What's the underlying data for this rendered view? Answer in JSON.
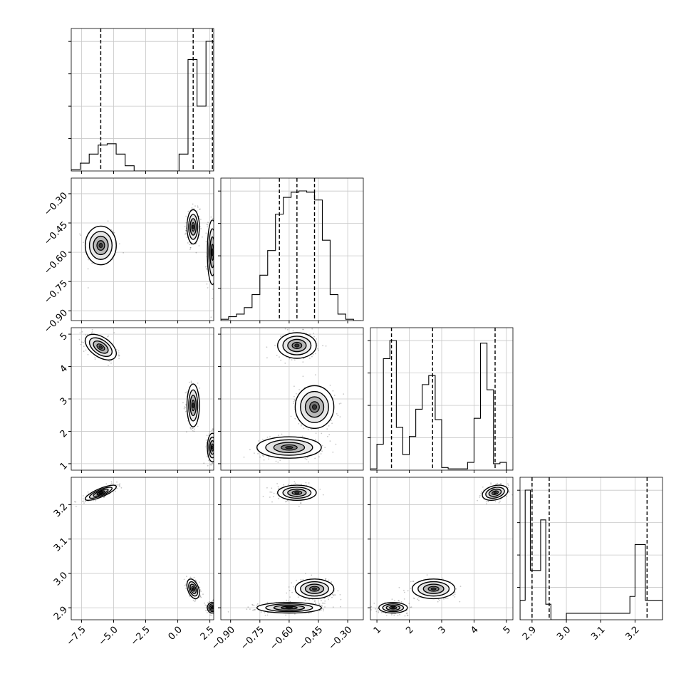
{
  "chart_data": {
    "type": "corner",
    "grid": true,
    "parameters": [
      {
        "range": [
          -8.3,
          2.8
        ],
        "ticks": [
          -7.5,
          -5.0,
          -2.5,
          0.0,
          2.5
        ],
        "tick_labels": [
          "−7.5",
          "−5.0",
          "−2.5",
          "0.0",
          "2.5"
        ],
        "quantiles": [
          -6.0,
          1.2,
          2.7
        ]
      },
      {
        "range": [
          -0.95,
          -0.22
        ],
        "ticks": [
          -0.9,
          -0.75,
          -0.6,
          -0.45,
          -0.3
        ],
        "tick_labels": [
          "−0.90",
          "−0.75",
          "−0.60",
          "−0.45",
          "−0.30"
        ],
        "quantiles": [
          -0.65,
          -0.56,
          -0.47
        ]
      },
      {
        "range": [
          0.8,
          5.2
        ],
        "ticks": [
          1,
          2,
          3,
          4,
          5
        ],
        "tick_labels": [
          "1",
          "2",
          "3",
          "4",
          "5"
        ],
        "quantiles": [
          1.45,
          2.72,
          4.65
        ]
      },
      {
        "range": [
          2.865,
          3.28
        ],
        "ticks": [
          2.9,
          3.0,
          3.1,
          3.2
        ],
        "tick_labels": [
          "2.9",
          "3.0",
          "3.1",
          "3.2"
        ],
        "quantiles": [
          2.9,
          2.95,
          3.235
        ]
      }
    ],
    "histograms": [
      {
        "bins": [
          -8.3,
          -7.6,
          -6.9,
          -6.2,
          -5.5,
          -4.8,
          -4.1,
          -3.4,
          0.1,
          0.8,
          1.5,
          2.2,
          2.8
        ],
        "counts": [
          0.01,
          0.06,
          0.13,
          0.2,
          0.21,
          0.13,
          0.04,
          0.0,
          0.13,
          0.86,
          0.5,
          1.0
        ]
      },
      {
        "bins": [
          -0.95,
          -0.91,
          -0.87,
          -0.83,
          -0.79,
          -0.75,
          -0.71,
          -0.67,
          -0.63,
          -0.59,
          -0.55,
          -0.51,
          -0.47,
          -0.43,
          -0.39,
          -0.35,
          -0.31,
          -0.27,
          -0.23
        ],
        "counts": [
          0.01,
          0.03,
          0.05,
          0.1,
          0.2,
          0.35,
          0.54,
          0.82,
          0.95,
          0.99,
          1.0,
          0.99,
          0.93,
          0.62,
          0.2,
          0.05,
          0.01,
          0.0
        ]
      },
      {
        "bins": [
          0.8,
          1.0,
          1.2,
          1.4,
          1.6,
          1.8,
          2.0,
          2.2,
          2.4,
          2.6,
          2.8,
          3.0,
          3.2,
          3.4,
          3.6,
          3.8,
          4.0,
          4.2,
          4.4,
          4.6,
          4.8,
          5.0,
          5.2
        ],
        "counts": [
          0.01,
          0.2,
          0.86,
          1.0,
          0.33,
          0.12,
          0.26,
          0.47,
          0.66,
          0.73,
          0.39,
          0.02,
          0.01,
          0.01,
          0.01,
          0.06,
          0.4,
          0.98,
          0.62,
          0.05,
          0.06,
          0.0
        ]
      },
      {
        "bins": [
          2.865,
          2.88,
          2.895,
          2.91,
          2.925,
          2.94,
          2.955,
          2.97,
          2.985,
          3.0,
          3.185,
          3.2,
          3.215,
          3.23,
          3.245,
          3.26,
          3.28
        ],
        "counts": [
          0.15,
          1.0,
          0.38,
          0.38,
          0.77,
          0.12,
          0.0,
          0.0,
          0.0,
          0.05,
          0.18,
          0.58,
          0.58,
          0.15,
          0.15,
          0.15
        ]
      }
    ],
    "panels": [
      {
        "row": 1,
        "col": 0,
        "blobs": [
          {
            "mean": [
              -6.0,
              -0.565
            ],
            "sd": [
              0.55,
              0.045
            ],
            "corr": 0.0,
            "weight": 0.3
          },
          {
            "mean": [
              1.2,
              -0.47
            ],
            "sd": [
              0.22,
              0.04
            ],
            "corr": 0.0,
            "weight": 0.35
          },
          {
            "mean": [
              2.7,
              -0.6
            ],
            "sd": [
              0.18,
              0.075
            ],
            "corr": 0.0,
            "weight": 0.35
          }
        ]
      },
      {
        "row": 2,
        "col": 0,
        "blobs": [
          {
            "mean": [
              -6.0,
              4.6
            ],
            "sd": [
              0.55,
              0.18
            ],
            "corr": -0.5,
            "weight": 0.3
          },
          {
            "mean": [
              1.2,
              2.8
            ],
            "sd": [
              0.22,
              0.3
            ],
            "corr": 0.0,
            "weight": 0.35
          },
          {
            "mean": [
              2.7,
              1.5
            ],
            "sd": [
              0.18,
              0.2
            ],
            "corr": 0.0,
            "weight": 0.35
          }
        ]
      },
      {
        "row": 2,
        "col": 1,
        "blobs": [
          {
            "mean": [
              -0.56,
              4.65
            ],
            "sd": [
              0.045,
              0.18
            ],
            "corr": 0.0,
            "weight": 0.3
          },
          {
            "mean": [
              -0.47,
              2.75
            ],
            "sd": [
              0.045,
              0.3
            ],
            "corr": 0.0,
            "weight": 0.35
          },
          {
            "mean": [
              -0.6,
              1.5
            ],
            "sd": [
              0.075,
              0.15
            ],
            "corr": 0.0,
            "weight": 0.35
          }
        ]
      },
      {
        "row": 3,
        "col": 0,
        "blobs": [
          {
            "mean": [
              -6.0,
              3.235
            ],
            "sd": [
              0.55,
              0.01
            ],
            "corr": 0.8,
            "weight": 0.3
          },
          {
            "mean": [
              1.2,
              2.955
            ],
            "sd": [
              0.22,
              0.013
            ],
            "corr": -0.4,
            "weight": 0.35
          },
          {
            "mean": [
              2.7,
              2.9
            ],
            "sd": [
              0.18,
              0.007
            ],
            "corr": 0.0,
            "weight": 0.35
          }
        ]
      },
      {
        "row": 3,
        "col": 1,
        "blobs": [
          {
            "mean": [
              -0.56,
              3.235
            ],
            "sd": [
              0.045,
              0.01
            ],
            "corr": 0.0,
            "weight": 0.3
          },
          {
            "mean": [
              -0.47,
              2.955
            ],
            "sd": [
              0.045,
              0.013
            ],
            "corr": 0.0,
            "weight": 0.35
          },
          {
            "mean": [
              -0.6,
              2.9
            ],
            "sd": [
              0.075,
              0.007
            ],
            "corr": 0.0,
            "weight": 0.35
          }
        ]
      },
      {
        "row": 3,
        "col": 2,
        "blobs": [
          {
            "mean": [
              4.65,
              3.235
            ],
            "sd": [
              0.18,
              0.01
            ],
            "corr": 0.3,
            "weight": 0.3
          },
          {
            "mean": [
              2.75,
              2.955
            ],
            "sd": [
              0.3,
              0.013
            ],
            "corr": 0.0,
            "weight": 0.35
          },
          {
            "mean": [
              1.5,
              2.9
            ],
            "sd": [
              0.2,
              0.007
            ],
            "corr": 0.0,
            "weight": 0.35
          }
        ]
      }
    ]
  }
}
